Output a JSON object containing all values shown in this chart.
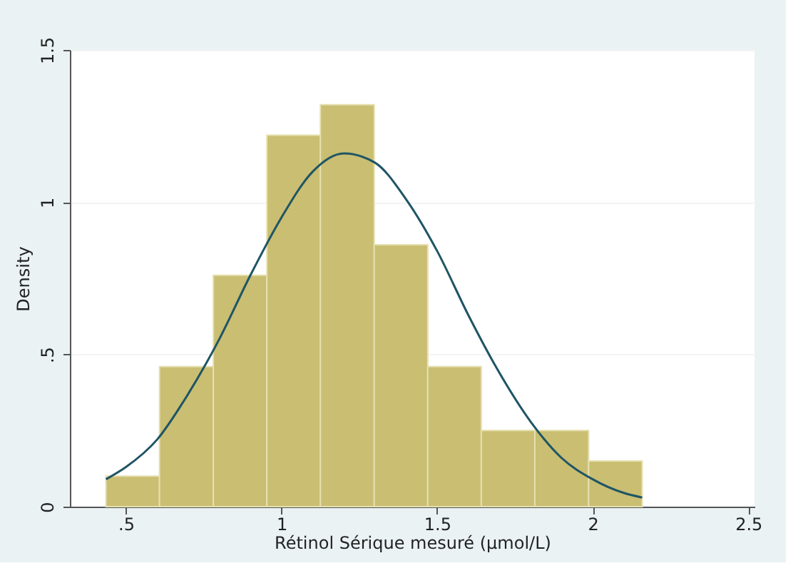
{
  "chart_data": {
    "type": "histogram",
    "xlabel": "Rétinol Sérique mesuré (µmol/L)",
    "ylabel": "Density",
    "bins": [
      0.436,
      0.608,
      0.781,
      0.953,
      1.125,
      1.298,
      1.47,
      1.642,
      1.814,
      1.987,
      2.159
    ],
    "series": [
      {
        "color": "#c9be72",
        "values": [
          0.1,
          0.46,
          0.76,
          1.22,
          1.32,
          0.86,
          0.46,
          0.25,
          0.25,
          0.15
        ]
      },
      {
        "type": "line",
        "color": "#1f5565",
        "x": [
          0.436,
          0.5,
          0.6,
          0.7,
          0.8,
          0.9,
          1.0,
          1.1,
          1.2,
          1.3,
          1.4,
          1.5,
          1.6,
          1.7,
          1.8,
          1.9,
          2.0,
          2.1,
          2.159
        ],
        "values": [
          0.09,
          0.13,
          0.22,
          0.37,
          0.55,
          0.76,
          0.95,
          1.1,
          1.16,
          1.13,
          1.01,
          0.84,
          0.63,
          0.44,
          0.28,
          0.16,
          0.09,
          0.045,
          0.03
        ]
      }
    ],
    "xlim": [
      0.32,
      2.52
    ],
    "ylim": [
      0,
      1.5
    ],
    "xticks": [
      {
        "value": 0.5,
        "label": ".5"
      },
      1,
      1.5,
      2,
      2.5
    ],
    "yticks": [
      0,
      {
        "value": 0.5,
        "label": ".5"
      },
      1,
      1.5
    ],
    "grid": "y"
  }
}
